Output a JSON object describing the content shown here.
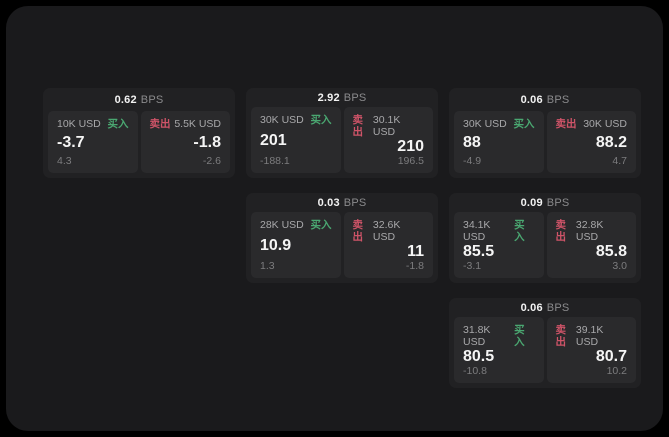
{
  "labels": {
    "bps": "BPS",
    "buy": "买入",
    "sell": "卖出"
  },
  "colors": {
    "buy_green": "#4aa771",
    "sell_red": "#cf5468",
    "page_bg": "#1a1a1c",
    "card_bg": "#212123",
    "panel_bg": "#2a2a2c"
  },
  "cards": [
    {
      "bps": "0.62",
      "buy": {
        "amount": "10K USD",
        "price": "-3.7",
        "sub": "4.3"
      },
      "sell": {
        "amount": "5.5K USD",
        "price": "-1.8",
        "sub": "-2.6"
      }
    },
    {
      "bps": "2.92",
      "buy": {
        "amount": "30K USD",
        "price": "201",
        "sub": "-188.1"
      },
      "sell": {
        "amount": "30.1K USD",
        "price": "210",
        "sub": "196.5"
      }
    },
    {
      "bps": "0.06",
      "buy": {
        "amount": "30K USD",
        "price": "88",
        "sub": "-4.9"
      },
      "sell": {
        "amount": "30K USD",
        "price": "88.2",
        "sub": "4.7"
      }
    },
    {
      "bps": "0.03",
      "buy": {
        "amount": "28K USD",
        "price": "10.9",
        "sub": "1.3"
      },
      "sell": {
        "amount": "32.6K USD",
        "price": "11",
        "sub": "-1.8"
      }
    },
    {
      "bps": "0.09",
      "buy": {
        "amount": "34.1K USD",
        "price": "85.5",
        "sub": "-3.1"
      },
      "sell": {
        "amount": "32.8K USD",
        "price": "85.8",
        "sub": "3.0"
      }
    },
    {
      "bps": "0.06",
      "buy": {
        "amount": "31.8K USD",
        "price": "80.5",
        "sub": "-10.8"
      },
      "sell": {
        "amount": "39.1K USD",
        "price": "80.7",
        "sub": "10.2"
      }
    }
  ]
}
